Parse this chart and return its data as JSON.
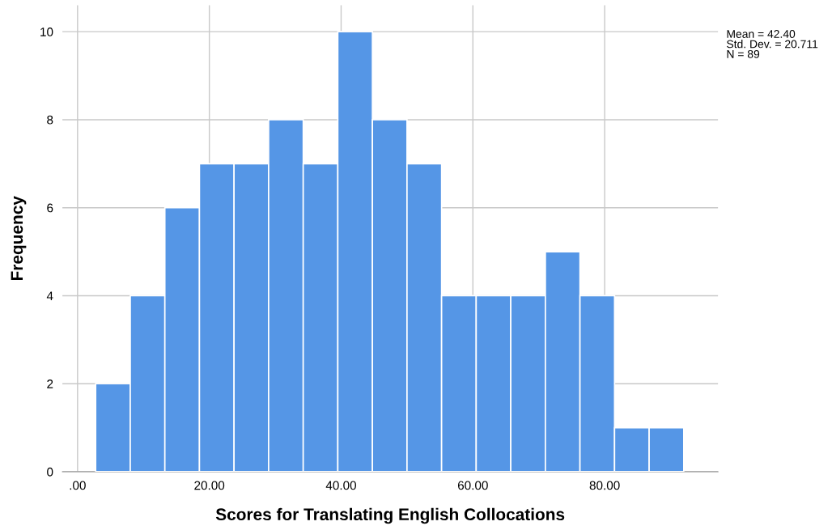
{
  "chart_data": {
    "type": "histogram",
    "xlabel": "Scores for Translating English Collocations",
    "ylabel": "Frequency",
    "bins": [
      2.75,
      8.0,
      13.25,
      18.5,
      23.75,
      29.0,
      34.25,
      39.5,
      44.75,
      50.0,
      55.25,
      60.5,
      65.75,
      71.0,
      76.25,
      81.5,
      86.75,
      92.0
    ],
    "values": [
      2,
      4,
      6,
      7,
      7,
      8,
      7,
      10,
      8,
      7,
      4,
      4,
      4,
      5,
      4,
      1,
      1
    ],
    "color": "#5596e6",
    "xlim": [
      -2.3,
      97.2
    ],
    "xticks": [
      {
        "value": 0,
        "label": ".00"
      },
      {
        "value": 20,
        "label": "20.00"
      },
      {
        "value": 40,
        "label": "40.00"
      },
      {
        "value": 60,
        "label": "60.00"
      },
      {
        "value": 80,
        "label": "80.00"
      }
    ],
    "ylim": [
      0,
      10.6
    ],
    "yticks": [
      0,
      2,
      4,
      6,
      8,
      10
    ],
    "grid": true,
    "annotations": [
      "Mean = 42.40\nStd. Dev. = 20.711\nN = 89"
    ]
  }
}
